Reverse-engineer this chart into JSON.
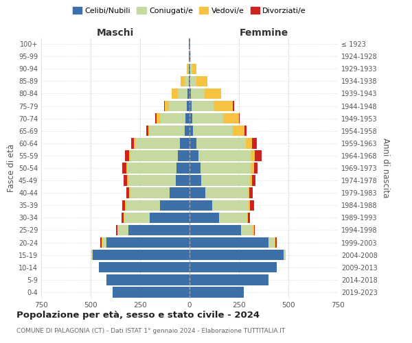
{
  "age_groups": [
    "0-4",
    "5-9",
    "10-14",
    "15-19",
    "20-24",
    "25-29",
    "30-34",
    "35-39",
    "40-44",
    "45-49",
    "50-54",
    "55-59",
    "60-64",
    "65-69",
    "70-74",
    "75-79",
    "80-84",
    "85-89",
    "90-94",
    "95-99",
    "100+"
  ],
  "birth_years": [
    "2019-2023",
    "2014-2018",
    "2009-2013",
    "2004-2008",
    "1999-2003",
    "1994-1998",
    "1989-1993",
    "1984-1988",
    "1979-1983",
    "1974-1978",
    "1969-1973",
    "1964-1968",
    "1959-1963",
    "1954-1958",
    "1949-1953",
    "1944-1948",
    "1939-1943",
    "1934-1938",
    "1929-1933",
    "1924-1928",
    "≤ 1923"
  ],
  "colors": {
    "celibe": "#3d6fa8",
    "coniugato": "#c5d9a0",
    "vedovo": "#f5c242",
    "divorziato": "#cc2222"
  },
  "males": {
    "celibe": [
      390,
      420,
      460,
      490,
      420,
      310,
      200,
      150,
      100,
      70,
      65,
      60,
      50,
      25,
      20,
      15,
      10,
      5,
      3,
      2,
      2
    ],
    "coniugato": [
      0,
      0,
      0,
      5,
      20,
      50,
      130,
      170,
      200,
      240,
      250,
      240,
      225,
      175,
      130,
      90,
      50,
      20,
      5,
      0,
      0
    ],
    "vedovo": [
      0,
      0,
      0,
      0,
      5,
      5,
      5,
      5,
      5,
      5,
      5,
      5,
      5,
      10,
      15,
      20,
      30,
      20,
      5,
      2,
      0
    ],
    "divorziato": [
      0,
      0,
      0,
      0,
      5,
      5,
      10,
      15,
      15,
      20,
      20,
      20,
      15,
      10,
      10,
      5,
      0,
      0,
      0,
      0,
      0
    ]
  },
  "females": {
    "nubile": [
      275,
      400,
      440,
      475,
      400,
      260,
      150,
      115,
      80,
      60,
      55,
      45,
      35,
      18,
      15,
      10,
      8,
      5,
      5,
      2,
      2
    ],
    "coniugata": [
      0,
      0,
      0,
      10,
      30,
      60,
      140,
      185,
      215,
      245,
      255,
      265,
      250,
      200,
      155,
      110,
      70,
      30,
      8,
      0,
      0
    ],
    "vedova": [
      0,
      0,
      0,
      0,
      5,
      5,
      5,
      5,
      8,
      10,
      15,
      20,
      30,
      60,
      80,
      100,
      80,
      55,
      20,
      5,
      2
    ],
    "divorziata": [
      0,
      0,
      0,
      0,
      5,
      5,
      10,
      20,
      15,
      20,
      20,
      35,
      25,
      10,
      5,
      5,
      0,
      0,
      0,
      0,
      0
    ]
  },
  "title": "Popolazione per età, sesso e stato civile - 2024",
  "subtitle": "COMUNE DI PALAGONIA (CT) - Dati ISTAT 1° gennaio 2024 - Elaborazione TUTTITALIA.IT",
  "xlabel_left": "Maschi",
  "xlabel_right": "Femmine",
  "ylabel_left": "Fasce di età",
  "ylabel_right": "Anni di nascita",
  "xlim": 750,
  "legend_labels": [
    "Celibi/Nubili",
    "Coniugati/e",
    "Vedovi/e",
    "Divorziati/e"
  ],
  "bg_color": "#ffffff",
  "grid_color": "#cccccc"
}
